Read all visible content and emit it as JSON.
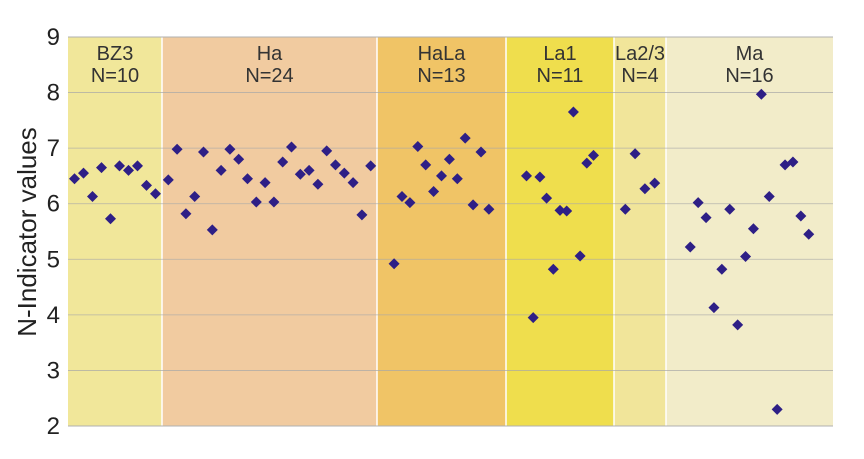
{
  "chart_data": {
    "type": "scatter",
    "title": "",
    "xlabel": "",
    "ylabel": "N-Indicator values",
    "ylim": [
      2,
      9
    ],
    "yticks": [
      "2",
      "3",
      "4",
      "5",
      "6",
      "7",
      "8",
      "9"
    ],
    "grid": true,
    "marker": "diamond",
    "marker_color": "#2e1f86",
    "groups": [
      {
        "name": "BZ3",
        "n_label": "N=10",
        "color": "#f1e79a",
        "values": [
          6.45,
          6.55,
          6.13,
          6.65,
          5.73,
          6.68,
          6.6,
          6.68,
          6.33,
          6.18
        ]
      },
      {
        "name": "Ha",
        "n_label": "N=24",
        "color": "#f1cba0",
        "values": [
          6.43,
          6.98,
          5.82,
          6.13,
          6.93,
          5.53,
          6.6,
          6.98,
          6.8,
          6.45,
          6.03,
          6.38,
          6.03,
          6.75,
          7.02,
          6.53,
          6.6,
          6.35,
          6.95,
          6.7,
          6.55,
          6.38,
          5.8,
          6.68
        ]
      },
      {
        "name": "HaLa",
        "n_label": "N=13",
        "color": "#f0c466",
        "values": [
          4.92,
          6.13,
          6.02,
          7.03,
          6.7,
          6.22,
          6.5,
          6.8,
          6.45,
          7.18,
          5.98,
          6.93,
          5.9
        ]
      },
      {
        "name": "La1",
        "n_label": "N=11",
        "color": "#efde4d",
        "values": [
          6.5,
          3.95,
          6.48,
          6.1,
          4.82,
          5.88,
          5.87,
          7.65,
          5.06,
          6.73,
          6.87
        ]
      },
      {
        "name": "La2/3",
        "n_label": "N=4",
        "color": "#f1e59a",
        "values": [
          5.9,
          6.9,
          6.27,
          6.37
        ]
      },
      {
        "name": "Ma",
        "n_label": "N=16",
        "color": "#f2ecc9",
        "values": [
          5.22,
          6.02,
          5.75,
          4.13,
          4.82,
          5.9,
          3.82,
          5.05,
          5.55,
          7.97,
          6.13,
          2.3,
          6.7,
          6.75,
          5.78,
          5.45
        ]
      }
    ]
  }
}
